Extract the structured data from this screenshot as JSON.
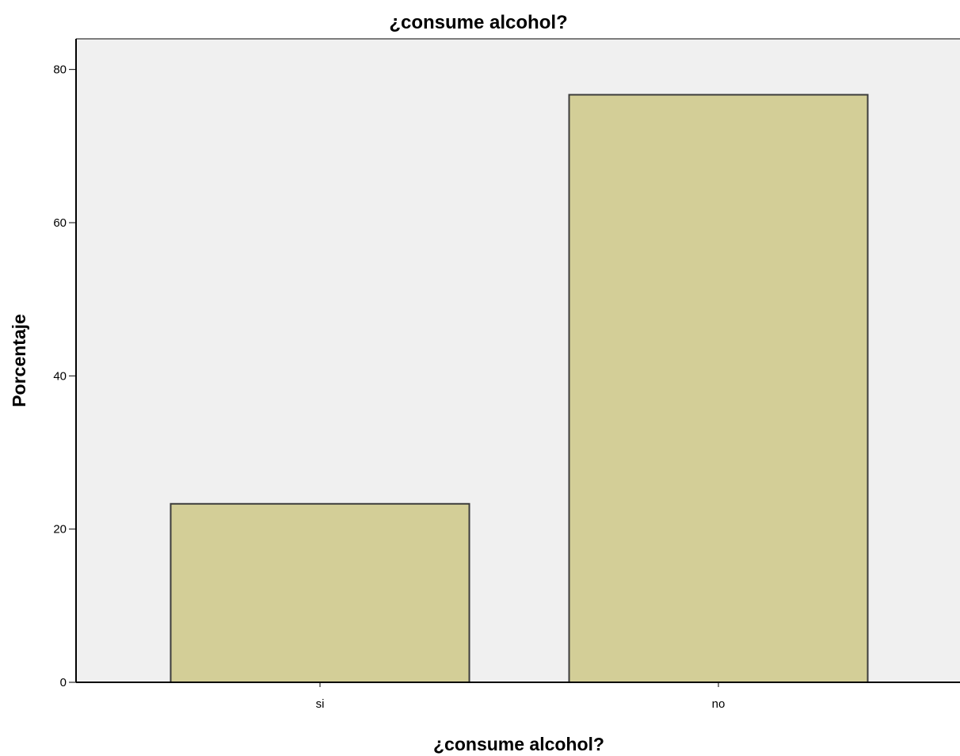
{
  "chart_data": {
    "type": "bar",
    "title": "¿consume alcohol?",
    "xlabel": "¿consume alcohol?",
    "ylabel": "Porcentaje",
    "categories": [
      "si",
      "no"
    ],
    "values": [
      23.3,
      76.7
    ],
    "ylim": [
      0,
      84
    ],
    "yticks": [
      0,
      20,
      40,
      60,
      80
    ],
    "grid": false,
    "legend": "none",
    "colors": {
      "bar_fill": "#d3ce97",
      "bar_stroke": "#3c3c3c",
      "plot_background": "#f0f0f0",
      "axis": "#000000"
    }
  }
}
